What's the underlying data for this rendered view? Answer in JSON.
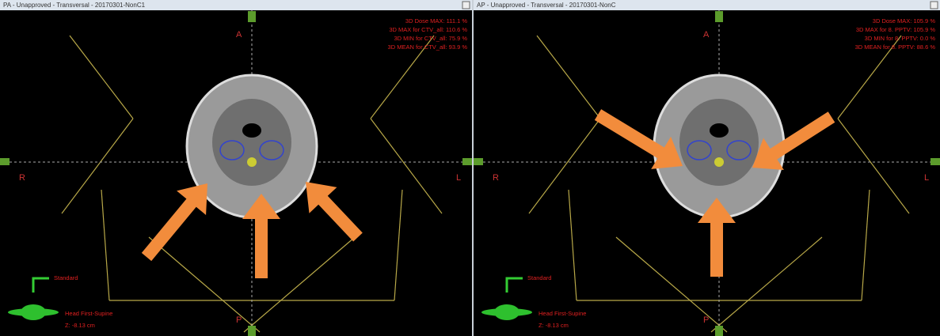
{
  "panels": [
    {
      "title": "PA - Unapproved - Transversal - 20170301-NonC1",
      "stats": [
        "3D Dose MAX: 111.1 %",
        "3D MAX for CTV_all: 110.6 %",
        "3D MIN for CTV_all: 75.9 %",
        "3D MEAN for CTV_all: 93.9 %"
      ],
      "orientation": {
        "top": "A",
        "bottom": "P",
        "left": "R",
        "right": "L"
      },
      "view_label": "Standard",
      "patient_position": "Head First-Supine",
      "z": "Z: -8.13 cm"
    },
    {
      "title": "AP - Unapproved - Transversal - 20170301-NonC",
      "stats": [
        "3D Dose MAX: 105.9 %",
        "3D MAX for 8. PPTV: 105.9 %",
        "3D MIN for 8. PPTV: 0.0 %",
        "3D MEAN for 8. PPTV: 88.6 %"
      ],
      "orientation": {
        "top": "A",
        "bottom": "P",
        "left": "R",
        "right": "L"
      },
      "view_label": "Standard",
      "patient_position": "Head First-Supine",
      "z": "Z: -8.13 cm"
    }
  ]
}
